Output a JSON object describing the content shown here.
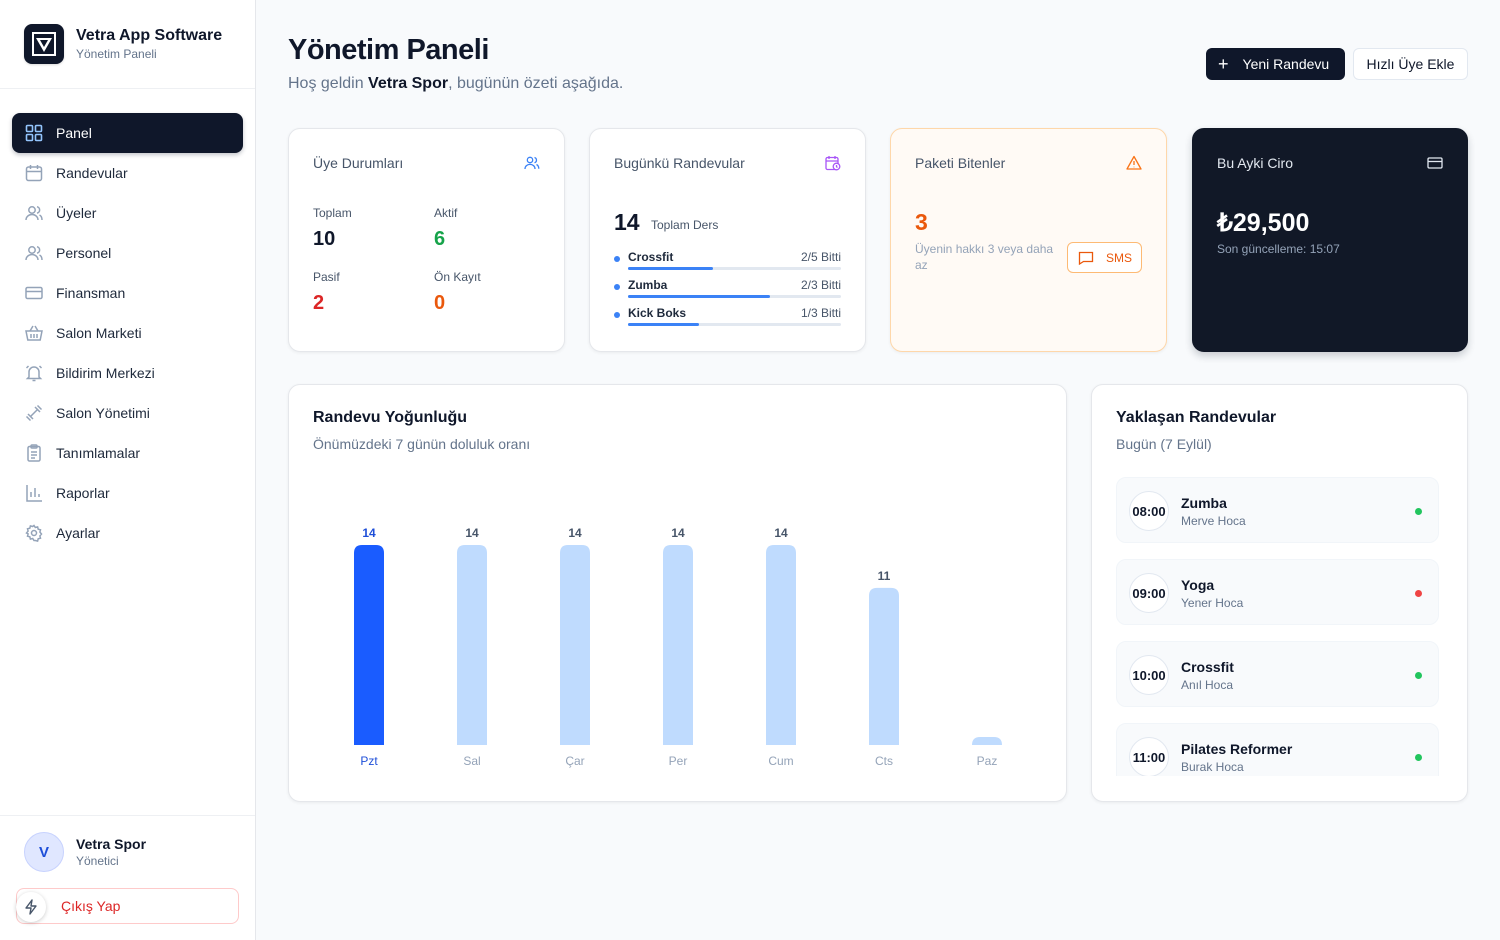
{
  "brand": {
    "title": "Vetra App Software",
    "subtitle": "Yönetim Paneli"
  },
  "nav": [
    {
      "label": "Panel",
      "icon": "grid-icon",
      "active": true
    },
    {
      "label": "Randevular",
      "icon": "calendar-icon"
    },
    {
      "label": "Üyeler",
      "icon": "users-icon"
    },
    {
      "label": "Personel",
      "icon": "staff-icon"
    },
    {
      "label": "Finansman",
      "icon": "credit-card-icon"
    },
    {
      "label": "Salon Marketi",
      "icon": "basket-icon"
    },
    {
      "label": "Bildirim Merkezi",
      "icon": "bell-icon"
    },
    {
      "label": "Salon Yönetimi",
      "icon": "dumbbell-icon"
    },
    {
      "label": "Tanımlamalar",
      "icon": "clipboard-icon"
    },
    {
      "label": "Raporlar",
      "icon": "bar-chart-icon"
    },
    {
      "label": "Ayarlar",
      "icon": "gear-icon"
    }
  ],
  "user": {
    "initial": "V",
    "name": "Vetra Spor",
    "role": "Yönetici",
    "logout_label": "Çıkış Yap"
  },
  "header": {
    "title": "Yönetim Paneli",
    "greeting_prefix": "Hoş geldin ",
    "greeting_name": "Vetra Spor",
    "greeting_suffix": ", bugünün özeti aşağıda.",
    "new_appointment_label": "Yeni Randevu",
    "quick_add_label": "Hızlı Üye Ekle"
  },
  "members_card": {
    "title": "Üye Durumları",
    "total_label": "Toplam",
    "total": "10",
    "active_label": "Aktif",
    "active": "6",
    "passive_label": "Pasif",
    "passive": "2",
    "pre_label": "Ön Kayıt",
    "pre": "0"
  },
  "today_card": {
    "title": "Bugünkü Randevular",
    "count": "14",
    "count_label": "Toplam Ders",
    "lessons": [
      {
        "name": "Crossfit",
        "status": "2/5 Bitti",
        "progress": 0.4
      },
      {
        "name": "Zumba",
        "status": "2/3 Bitti",
        "progress": 0.667
      },
      {
        "name": "Kick Boks",
        "status": "1/3 Bitti",
        "progress": 0.333
      }
    ]
  },
  "expired_card": {
    "title": "Paketi Bitenler",
    "count": "3",
    "desc": "Üyenin hakkı 3 veya daha az",
    "sms_label": "SMS",
    "accent": "#ea580c"
  },
  "revenue_card": {
    "title": "Bu Ayki Ciro",
    "value": "₺29,500",
    "updated": "Son güncelleme: 15:07"
  },
  "density_card": {
    "title": "Randevu Yoğunluğu",
    "subtitle": "Önümüzdeki 7 günün doluluk oranı"
  },
  "chart_data": {
    "type": "bar",
    "categories": [
      "Pzt",
      "Sal",
      "Çar",
      "Per",
      "Cum",
      "Cts",
      "Paz"
    ],
    "values": [
      14,
      14,
      14,
      14,
      14,
      11,
      0
    ],
    "value_labels": [
      "14",
      "14",
      "14",
      "14",
      "14",
      "11",
      ""
    ],
    "highlight_index": 0,
    "ylim": [
      0,
      14
    ],
    "colors": {
      "highlight": "#1a5cff",
      "normal": "#bfdbfe"
    }
  },
  "upcoming": {
    "title": "Yaklaşan Randevular",
    "subtitle": "Bugün (7 Eylül)",
    "items": [
      {
        "time": "08:00",
        "name": "Zumba",
        "trainer": "Merve Hoca",
        "status_color": "#22c55e"
      },
      {
        "time": "09:00",
        "name": "Yoga",
        "trainer": "Yener Hoca",
        "status_color": "#ef4444"
      },
      {
        "time": "10:00",
        "name": "Crossfit",
        "trainer": "Anıl Hoca",
        "status_color": "#22c55e"
      },
      {
        "time": "11:00",
        "name": "Pilates Reformer",
        "trainer": "Burak Hoca",
        "status_color": "#22c55e"
      }
    ]
  }
}
